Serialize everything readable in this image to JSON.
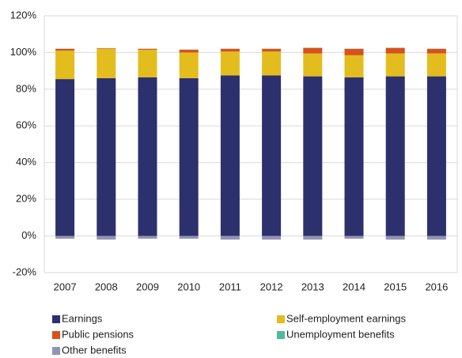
{
  "chart_data": {
    "type": "stacked_bar",
    "categories": [
      "2007",
      "2008",
      "2009",
      "2010",
      "2011",
      "2012",
      "2013",
      "2014",
      "2015",
      "2016"
    ],
    "series": [
      {
        "name": "Earnings",
        "color": "#2c306c",
        "values": [
          85.5,
          86,
          86.5,
          86,
          87.5,
          87.5,
          87,
          86.5,
          87,
          87
        ]
      },
      {
        "name": "Self-employment earnings",
        "color": "#e3bd1e",
        "values": [
          15.5,
          16,
          15,
          14,
          13,
          13,
          12.5,
          12,
          12.5,
          12.5
        ]
      },
      {
        "name": "Public pensions",
        "color": "#d8501c",
        "values": [
          1,
          0.3,
          0.5,
          1.5,
          1.5,
          1.5,
          3,
          3.5,
          3,
          2.5
        ]
      },
      {
        "name": "Unemployment benefits",
        "color": "#4fb99b",
        "values": [
          0.1,
          0.1,
          0.1,
          0.1,
          0.1,
          0.1,
          0.1,
          0.1,
          0.1,
          0.1
        ]
      },
      {
        "name": "Other benefits",
        "color": "#9294b4",
        "values": [
          -1.5,
          -2,
          -1.5,
          -1.5,
          -2,
          -2,
          -2,
          -1.5,
          -2,
          -2
        ]
      }
    ],
    "ylim": [
      -20,
      120
    ],
    "yticks": [
      {
        "value": -20,
        "label": "-20%"
      },
      {
        "value": 0,
        "label": "0%"
      },
      {
        "value": 20,
        "label": "20%"
      },
      {
        "value": 40,
        "label": "40%"
      },
      {
        "value": 60,
        "label": "60%"
      },
      {
        "value": 80,
        "label": "80%"
      },
      {
        "value": 100,
        "label": "100%"
      },
      {
        "value": 120,
        "label": "120%"
      }
    ],
    "grid": true
  }
}
